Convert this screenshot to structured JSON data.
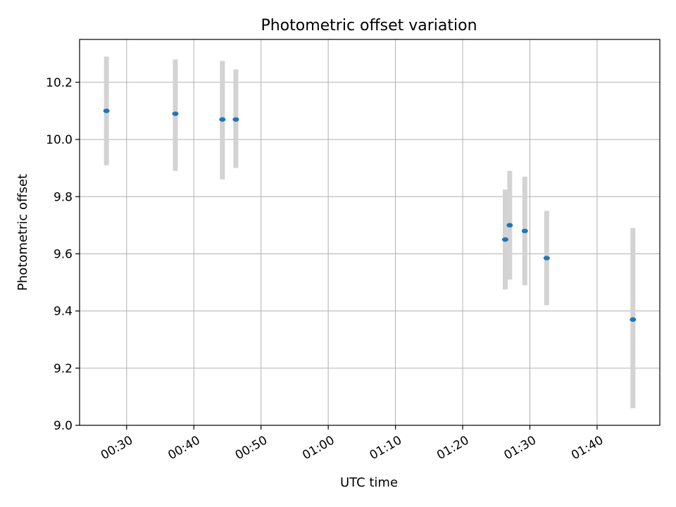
{
  "chart_data": {
    "type": "scatter",
    "title": "Photometric offset variation",
    "xlabel": "UTC time",
    "ylabel": "Photometric offset",
    "xlim": [
      "00:23:00",
      "01:49:20"
    ],
    "ylim": [
      9.0,
      10.35
    ],
    "x_ticks": [
      "00:30",
      "00:40",
      "00:50",
      "01:00",
      "01:10",
      "01:20",
      "01:30",
      "01:40"
    ],
    "y_ticks": [
      "9.0",
      "9.2",
      "9.4",
      "9.6",
      "9.8",
      "10.0",
      "10.2"
    ],
    "grid": true,
    "colors": {
      "points": "#1f77b4",
      "errorbars": "#d3d3d3",
      "grid": "#b0b0b0"
    },
    "points": [
      {
        "x": "00:27:00",
        "y": 10.1,
        "y_low": 9.91,
        "y_high": 10.29
      },
      {
        "x": "00:37:15",
        "y": 10.09,
        "y_low": 9.89,
        "y_high": 10.28
      },
      {
        "x": "00:44:15",
        "y": 10.07,
        "y_low": 9.86,
        "y_high": 10.275
      },
      {
        "x": "00:46:15",
        "y": 10.07,
        "y_low": 9.9,
        "y_high": 10.245
      },
      {
        "x": "01:26:20",
        "y": 9.65,
        "y_low": 9.475,
        "y_high": 9.825
      },
      {
        "x": "01:27:00",
        "y": 9.7,
        "y_low": 9.51,
        "y_high": 9.89
      },
      {
        "x": "01:29:15",
        "y": 9.68,
        "y_low": 9.49,
        "y_high": 9.87
      },
      {
        "x": "01:32:30",
        "y": 9.585,
        "y_low": 9.42,
        "y_high": 9.75
      },
      {
        "x": "01:45:20",
        "y": 9.37,
        "y_low": 9.06,
        "y_high": 9.69
      }
    ]
  }
}
